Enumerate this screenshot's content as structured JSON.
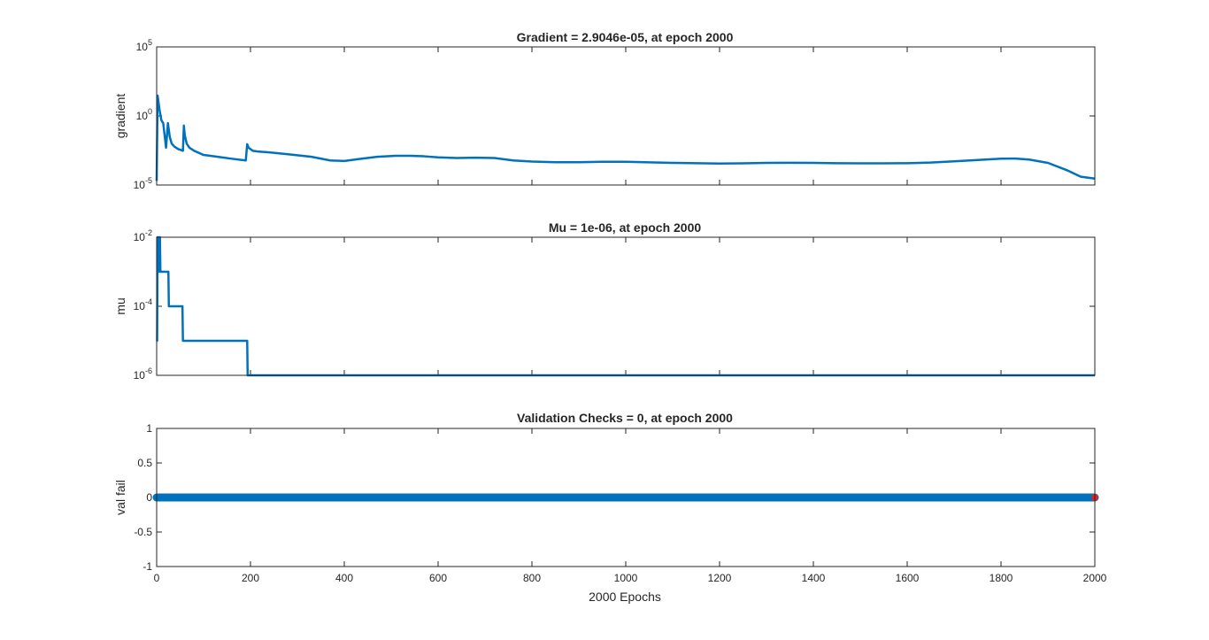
{
  "chart_data": [
    {
      "type": "line",
      "title": "Gradient = 2.9046e-05, at epoch 2000",
      "ylabel": "gradient",
      "xlabel": "",
      "yscale": "log",
      "xlim": [
        0,
        2000
      ],
      "ylim": [
        1e-05,
        100000
      ],
      "yticks": [
        {
          "base": "10",
          "exp": "-5"
        },
        {
          "base": "10",
          "exp": "0"
        },
        {
          "base": "10",
          "exp": "5"
        }
      ],
      "series": [
        {
          "color": "#0072BD",
          "x": [
            0,
            2,
            6,
            10,
            14,
            18,
            20,
            24,
            28,
            32,
            38,
            46,
            56,
            58,
            60,
            64,
            70,
            80,
            100,
            130,
            160,
            190,
            193,
            196,
            205,
            215,
            240,
            280,
            330,
            370,
            400,
            430,
            470,
            510,
            540,
            570,
            600,
            640,
            680,
            720,
            760,
            800,
            850,
            900,
            950,
            1000,
            1100,
            1200,
            1250,
            1300,
            1350,
            1400,
            1450,
            1500,
            1550,
            1600,
            1650,
            1700,
            1750,
            1800,
            1830,
            1860,
            1900,
            1940,
            1970,
            2000
          ],
          "y": [
            2e-05,
            30,
            3,
            0.5,
            0.3,
            0.02,
            0.005,
            0.3,
            0.03,
            0.01,
            0.006,
            0.004,
            0.003,
            0.2,
            0.04,
            0.01,
            0.005,
            0.003,
            0.0015,
            0.0011,
            0.0008,
            0.0006,
            0.009,
            0.005,
            0.003,
            0.0027,
            0.0023,
            0.0017,
            0.0011,
            0.0006,
            0.00055,
            0.00075,
            0.0011,
            0.0013,
            0.0013,
            0.0012,
            0.001,
            0.0009,
            0.00095,
            0.0009,
            0.0006,
            0.0005,
            0.00045,
            0.00045,
            0.00048,
            0.00048,
            0.0004,
            0.00036,
            0.00037,
            0.0004,
            0.00041,
            0.0004,
            0.00038,
            0.00037,
            0.00037,
            0.00038,
            0.00042,
            0.00052,
            0.00065,
            0.0008,
            0.00082,
            0.0007,
            0.0004,
            0.00012,
            4e-05,
            2.9046e-05
          ]
        }
      ]
    },
    {
      "type": "line",
      "title": "Mu = 1e-06, at epoch 2000",
      "ylabel": "mu",
      "xlabel": "",
      "yscale": "log",
      "xlim": [
        0,
        2000
      ],
      "ylim": [
        1e-06,
        0.01
      ],
      "yticks": [
        {
          "base": "10",
          "exp": "-6"
        },
        {
          "base": "10",
          "exp": "-4"
        },
        {
          "base": "10",
          "exp": "-2"
        }
      ],
      "series": [
        {
          "color": "#0072BD",
          "x": [
            0,
            1,
            2,
            3,
            4,
            5,
            6,
            7,
            8,
            24,
            25,
            26,
            27,
            54,
            55,
            56,
            57,
            193,
            194,
            195,
            196,
            2000
          ],
          "y": [
            1e-05,
            1e-05,
            0.01,
            0.01,
            0.001,
            0.001,
            0.01,
            0.01,
            0.001,
            0.001,
            0.001,
            0.0001,
            0.0001,
            0.0001,
            0.0001,
            1e-05,
            1e-05,
            1e-05,
            1e-06,
            1e-06,
            1e-06,
            1e-06
          ]
        }
      ]
    },
    {
      "type": "line",
      "title": "Validation Checks = 0, at epoch 2000",
      "ylabel": "val fail",
      "xlabel": "2000 Epochs",
      "yscale": "linear",
      "xlim": [
        0,
        2000
      ],
      "ylim": [
        -1,
        1
      ],
      "yticks": [
        {
          "base": "-1",
          "exp": ""
        },
        {
          "base": "-0.5",
          "exp": ""
        },
        {
          "base": "0",
          "exp": ""
        },
        {
          "base": "0.5",
          "exp": ""
        },
        {
          "base": "1",
          "exp": ""
        }
      ],
      "series": [
        {
          "color": "#0072BD",
          "x": [
            0,
            2000
          ],
          "y": [
            0,
            0
          ],
          "markers": true
        }
      ],
      "highlight_point": {
        "x": 2000,
        "y": 0,
        "color": "#D62728"
      }
    }
  ],
  "xticks": [
    "0",
    "200",
    "400",
    "600",
    "800",
    "1000",
    "1200",
    "1400",
    "1600",
    "1800",
    "2000"
  ],
  "xtick_values": [
    0,
    200,
    400,
    600,
    800,
    1000,
    1200,
    1400,
    1600,
    1800,
    2000
  ]
}
